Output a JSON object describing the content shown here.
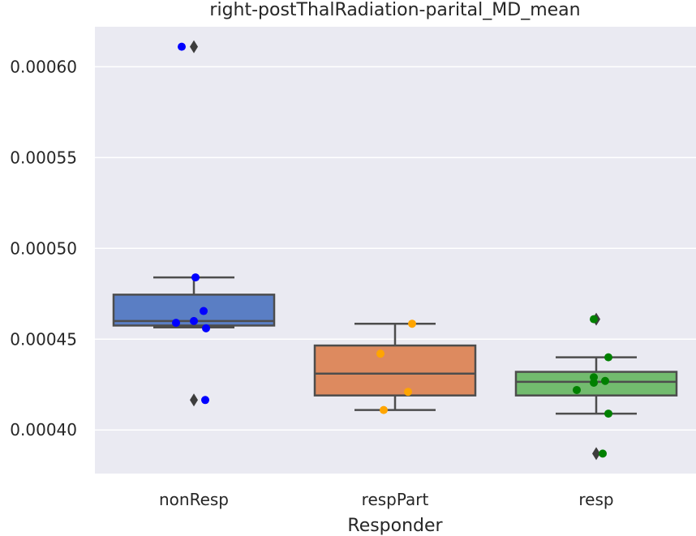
{
  "chart_data": {
    "type": "box",
    "title": "right-postThalRadiation-parital_MD_mean",
    "xlabel": "Responder",
    "ylabel": "",
    "ylim": [
      0.000376,
      0.000622
    ],
    "yticks": [
      0.0004,
      0.00045,
      0.0005,
      0.00055,
      0.0006
    ],
    "ytick_labels": [
      "0.00040",
      "0.00045",
      "0.00050",
      "0.00055",
      "0.00060"
    ],
    "categories": [
      "nonResp",
      "respPart",
      "resp"
    ],
    "grid": true,
    "colors": {
      "background": "#eaeaf2",
      "grid": "#ffffff",
      "box_edge": "#4d4d4d",
      "outlier_marker": "#3d3d3d"
    },
    "boxes": [
      {
        "category": "nonResp",
        "fill": "#5a7ec4",
        "point_color": "#0000ff",
        "q1": 0.0004575,
        "median": 0.00046,
        "q3": 0.0004745,
        "whisker_low": 0.0004565,
        "whisker_high": 0.000484,
        "outliers": [
          0.000611,
          0.0004165
        ],
        "points": [
          {
            "x": 0.0,
            "y": 0.000611
          },
          {
            "x": 0.0,
            "y": 0.000484
          },
          {
            "x": 0.0,
            "y": 0.0004655
          },
          {
            "x": 0.0,
            "y": 0.00046
          },
          {
            "x": 0.0,
            "y": 0.000459
          },
          {
            "x": 0.0,
            "y": 0.000456
          },
          {
            "x": 0.0,
            "y": 0.0004165
          }
        ]
      },
      {
        "category": "respPart",
        "fill": "#dd8a5f",
        "point_color": "#ffa500",
        "q1": 0.000419,
        "median": 0.000431,
        "q3": 0.0004465,
        "whisker_low": 0.000411,
        "whisker_high": 0.0004585,
        "outliers": [],
        "points": [
          {
            "x": 1.0,
            "y": 0.0004585
          },
          {
            "x": 1.0,
            "y": 0.000442
          },
          {
            "x": 1.0,
            "y": 0.000421
          },
          {
            "x": 1.0,
            "y": 0.000411
          }
        ]
      },
      {
        "category": "resp",
        "fill": "#72bb6e",
        "point_color": "#008000",
        "q1": 0.000419,
        "median": 0.0004265,
        "q3": 0.000432,
        "whisker_low": 0.000409,
        "whisker_high": 0.00044,
        "outliers": [
          0.000461,
          0.000387
        ],
        "points": [
          {
            "x": 2.0,
            "y": 0.000461
          },
          {
            "x": 2.0,
            "y": 0.00044
          },
          {
            "x": 2.0,
            "y": 0.000429
          },
          {
            "x": 2.0,
            "y": 0.000427
          },
          {
            "x": 2.0,
            "y": 0.000426
          },
          {
            "x": 2.0,
            "y": 0.000422
          },
          {
            "x": 2.0,
            "y": 0.000409
          },
          {
            "x": 2.0,
            "y": 0.000387
          }
        ]
      }
    ]
  }
}
